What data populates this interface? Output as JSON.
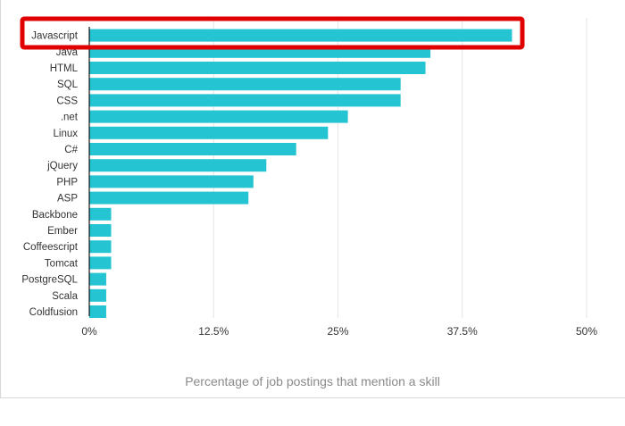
{
  "chart_data": {
    "type": "bar",
    "orientation": "horizontal",
    "categories": [
      "Javascript",
      "Java",
      "HTML",
      "SQL",
      "CSS",
      ".net",
      "Linux",
      "C#",
      "jQuery",
      "PHP",
      "ASP",
      "Backbone",
      "Ember",
      "Coffeescript",
      "Tomcat",
      "PostgreSQL",
      "Scala",
      "Coldfusion"
    ],
    "values": [
      42.5,
      34.3,
      33.8,
      31.3,
      31.3,
      26.0,
      24.0,
      20.8,
      17.8,
      16.5,
      16.0,
      2.2,
      2.2,
      2.2,
      2.2,
      1.7,
      1.7,
      1.7
    ],
    "title": "",
    "xlabel": "Percentage of job postings that mention a skill",
    "ylabel": "",
    "xlim": [
      0,
      50
    ],
    "xticks": [
      {
        "value": 0,
        "label": "0%"
      },
      {
        "value": 12.5,
        "label": "12.5%"
      },
      {
        "value": 25,
        "label": "25%"
      },
      {
        "value": 37.5,
        "label": "37.5%"
      },
      {
        "value": 50,
        "label": "50%"
      }
    ],
    "grid": "vertical",
    "legend": "none",
    "highlighted_category": "Javascript",
    "colors": {
      "bar": "#24c4d2",
      "highlight_outline": "#e00000",
      "grid": "#e6e6e6",
      "axis": "#111111"
    }
  }
}
